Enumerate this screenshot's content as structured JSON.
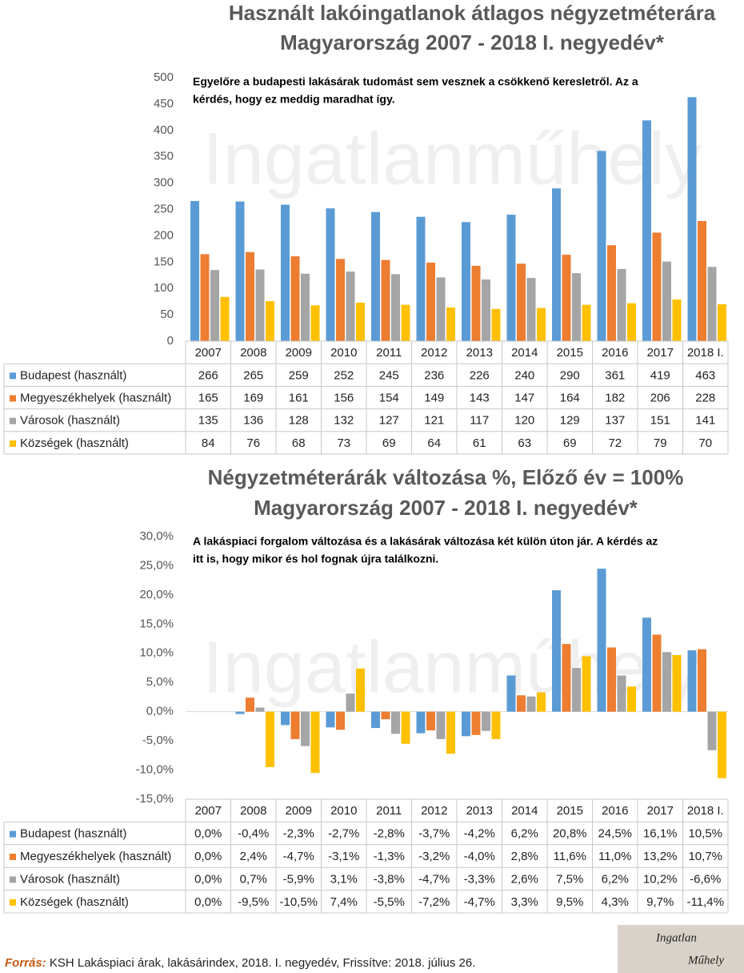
{
  "chart_data": [
    {
      "type": "bar",
      "title": "Használt lakóingatlanok átlagos négyzetméterára",
      "subtitle": "Magyarország 2007 - 2018 I. negyedév*",
      "annotation": [
        "Egyelőre a budapesti lakásárak tudomást sem vesznek a csökkenő keresletről. Az a",
        "kérdés, hogy ez meddig maradhat így."
      ],
      "watermark": "Ingatlanműhely",
      "categories": [
        "2007",
        "2008",
        "2009",
        "2010",
        "2011",
        "2012",
        "2013",
        "2014",
        "2015",
        "2016",
        "2017",
        "2018 I."
      ],
      "series": [
        {
          "name": "Budapest (használt)",
          "color": "#5b9bd5",
          "values": [
            266,
            265,
            259,
            252,
            245,
            236,
            226,
            240,
            290,
            361,
            419,
            463
          ]
        },
        {
          "name": "Megyeszékhelyek (használt)",
          "color": "#ed7d31",
          "values": [
            165,
            169,
            161,
            156,
            154,
            149,
            143,
            147,
            164,
            182,
            206,
            228
          ]
        },
        {
          "name": "Városok (használt)",
          "color": "#a5a5a5",
          "values": [
            135,
            136,
            128,
            132,
            127,
            121,
            117,
            120,
            129,
            137,
            151,
            141
          ]
        },
        {
          "name": "Községek (használt)",
          "color": "#ffc000",
          "values": [
            84,
            76,
            68,
            73,
            69,
            64,
            61,
            63,
            69,
            72,
            79,
            70
          ]
        }
      ],
      "ylim": [
        0,
        500
      ],
      "yticks": [
        0,
        50,
        100,
        150,
        200,
        250,
        300,
        350,
        400,
        450,
        500
      ]
    },
    {
      "type": "bar",
      "title": "Négyzetméterárák változása %, Előző év = 100%",
      "subtitle": "Magyarország 2007 - 2018 I. negyedév*",
      "annotation": [
        "A lakáspiaci forgalom változása és a lakásárak változása két külön úton jár. A kérdés az",
        "itt is, hogy mikor és hol fognak újra találkozni."
      ],
      "watermark": "Ingatlanműhely",
      "categories": [
        "2007",
        "2008",
        "2009",
        "2010",
        "2011",
        "2012",
        "2013",
        "2014",
        "2015",
        "2016",
        "2017",
        "2018 I."
      ],
      "series": [
        {
          "name": "Budapest (használt)",
          "color": "#5b9bd5",
          "values": [
            0,
            -0.4,
            -2.3,
            -2.7,
            -2.8,
            -3.7,
            -4.2,
            6.2,
            20.8,
            24.5,
            16.1,
            10.5
          ],
          "value_labels": [
            "0,0%",
            "-0,4%",
            "-2,3%",
            "-2,7%",
            "-2,8%",
            "-3,7%",
            "-4,2%",
            "6,2%",
            "20,8%",
            "24,5%",
            "16,1%",
            "10,5%"
          ]
        },
        {
          "name": "Megyeszékhelyek (használt)",
          "color": "#ed7d31",
          "values": [
            0,
            2.4,
            -4.7,
            -3.1,
            -1.3,
            -3.2,
            -4.0,
            2.8,
            11.6,
            11.0,
            13.2,
            10.7
          ],
          "value_labels": [
            "0,0%",
            "2,4%",
            "-4,7%",
            "-3,1%",
            "-1,3%",
            "-3,2%",
            "-4,0%",
            "2,8%",
            "11,6%",
            "11,0%",
            "13,2%",
            "10,7%"
          ]
        },
        {
          "name": "Városok (használt)",
          "color": "#a5a5a5",
          "values": [
            0,
            0.7,
            -5.9,
            3.1,
            -3.8,
            -4.7,
            -3.3,
            2.6,
            7.5,
            6.2,
            10.2,
            -6.6
          ],
          "value_labels": [
            "0,0%",
            "0,7%",
            "-5,9%",
            "3,1%",
            "-3,8%",
            "-4,7%",
            "-3,3%",
            "2,6%",
            "7,5%",
            "6,2%",
            "10,2%",
            "-6,6%"
          ]
        },
        {
          "name": "Községek (használt)",
          "color": "#ffc000",
          "values": [
            0,
            -9.5,
            -10.5,
            7.4,
            -5.5,
            -7.2,
            -4.7,
            3.3,
            9.5,
            4.3,
            9.7,
            -11.4
          ],
          "value_labels": [
            "0,0%",
            "-9,5%",
            "-10,5%",
            "7,4%",
            "-5,5%",
            "-7,2%",
            "-4,7%",
            "3,3%",
            "9,5%",
            "4,3%",
            "9,7%",
            "-11,4%"
          ]
        }
      ],
      "ylim": [
        -15,
        30
      ],
      "yticks": [
        {
          "value": -15,
          "label": "-15,0%"
        },
        {
          "value": -10,
          "label": "-10,0%"
        },
        {
          "value": -5,
          "label": "-5,0%"
        },
        {
          "value": 0,
          "label": "0,0%"
        },
        {
          "value": 5,
          "label": "5,0%"
        },
        {
          "value": 10,
          "label": "10,0%"
        },
        {
          "value": 15,
          "label": "15,0%"
        },
        {
          "value": 20,
          "label": "20,0%"
        },
        {
          "value": 25,
          "label": "25,0%"
        },
        {
          "value": 30,
          "label": "30,0%"
        }
      ]
    }
  ],
  "footer": {
    "source_label": "Forrás:",
    "source_text": " KSH Lakáspiaci árak, lakásárindex, 2018. I. negyedév, Frissítve: 2018. július 26."
  },
  "logo": {
    "line1": "Ingatlan",
    "line2": "Műhely"
  }
}
